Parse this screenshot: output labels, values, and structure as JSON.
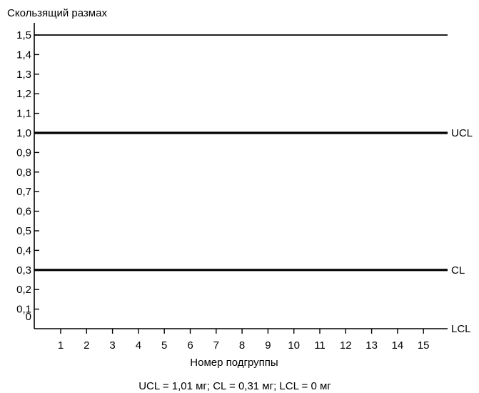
{
  "chart_data": {
    "type": "line",
    "title": "",
    "ylabel": "Скользящий размах",
    "xlabel": "Номер подгруппы",
    "caption": "UCL = 1,01 мг; CL = 0,31 мг; LCL = 0 мг",
    "ylim": [
      0,
      1.5
    ],
    "y_ticks": [
      "0",
      "0,1",
      "0,2",
      "0,3",
      "0,4",
      "0,5",
      "0,6",
      "0,7",
      "0,8",
      "0,9",
      "1,0",
      "1,1",
      "1,2",
      "1,3",
      "1,4",
      "1,5"
    ],
    "x_ticks": [
      "1",
      "2",
      "3",
      "4",
      "5",
      "6",
      "7",
      "8",
      "9",
      "10",
      "11",
      "12",
      "13",
      "14",
      "15"
    ],
    "reference_lines": [
      {
        "name": "UCL",
        "value": 1.0
      },
      {
        "name": "CL",
        "value": 0.3
      },
      {
        "name": "LCL",
        "value": 0
      }
    ],
    "top_line_value": 1.5,
    "series": []
  }
}
